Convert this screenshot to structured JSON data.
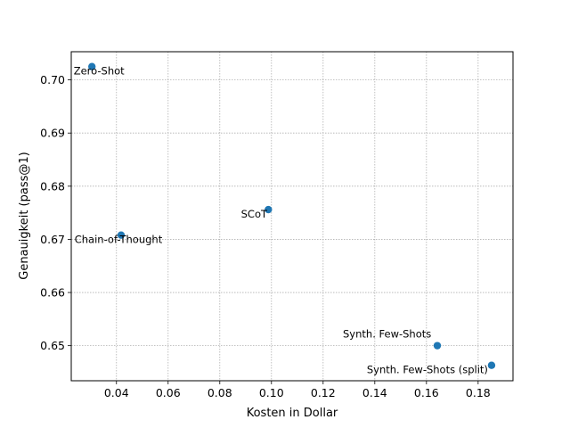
{
  "chart_data": {
    "type": "scatter",
    "xlabel": "Kosten in Dollar",
    "ylabel": "Genauigkeit (pass@1)",
    "xlim": [
      0.0225,
      0.1935
    ],
    "ylim": [
      0.6434,
      0.7053
    ],
    "xticks": [
      "0.04",
      "0.06",
      "0.08",
      "0.10",
      "0.12",
      "0.14",
      "0.16",
      "0.18"
    ],
    "yticks": [
      "0.65",
      "0.66",
      "0.67",
      "0.68",
      "0.69",
      "0.70"
    ],
    "grid": true,
    "marker_color": "#1f77b4",
    "points": [
      {
        "label": "Zero-Shot",
        "x": 0.0305,
        "y": 0.7025
      },
      {
        "label": "Chain-of-Thought",
        "x": 0.0418,
        "y": 0.6708
      },
      {
        "label": "SCoT",
        "x": 0.0988,
        "y": 0.6756
      },
      {
        "label": "Synth. Few-Shots",
        "x": 0.1642,
        "y": 0.65
      },
      {
        "label": "Synth. Few-Shots (split)",
        "x": 0.1852,
        "y": 0.6463
      }
    ]
  }
}
